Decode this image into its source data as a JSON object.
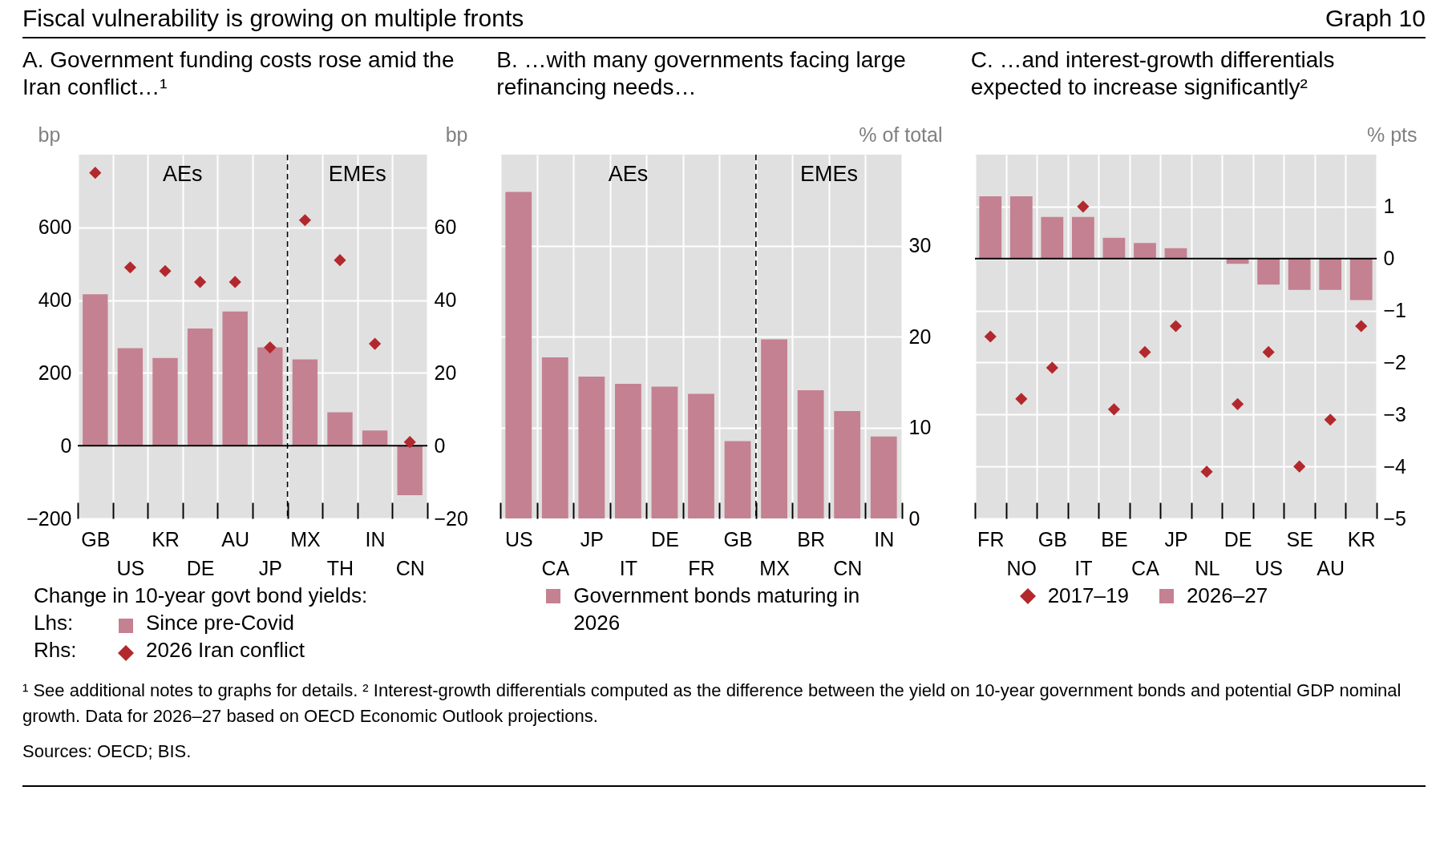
{
  "chart_data": [
    {
      "type": "other",
      "title": "Fiscal vulnerability is growing on multiple fronts",
      "annotations": [
        "Graph 10"
      ]
    },
    {
      "type": "bar",
      "title": "A. Government funding costs rose amid the Iran conflict…¹",
      "ylabel": "bp",
      "y2label": "bp",
      "legend_title": "Change in 10-year govt bond yields:",
      "categories": [
        "GB",
        "US",
        "KR",
        "DE",
        "AU",
        "JP",
        "MX",
        "TH",
        "IN",
        "CN"
      ],
      "series": [
        {
          "name": "Since pre-Covid",
          "color": "#c48191",
          "values": [
            416,
            268,
            241,
            322,
            369,
            270,
            237,
            92,
            42,
            -136
          ]
        },
        {
          "name": "2026 Iran conflict",
          "type": "scatter",
          "axis": "y2",
          "color": "#b3282d",
          "values": [
            75,
            49,
            48,
            45,
            45,
            27,
            62,
            51,
            28,
            1
          ]
        }
      ],
      "ylim": [
        -200,
        800
      ],
      "yticks": [
        -200,
        0,
        200,
        400,
        600
      ],
      "y2lim": [
        -20,
        80
      ],
      "y2ticks": [
        -20,
        0,
        20,
        40,
        60
      ],
      "marker": "diamond",
      "grid": true,
      "legend": "bottom",
      "ref_lines": [
        {
          "axis": "x",
          "value": "MX",
          "line_style": "dashed",
          "color": "#000000"
        },
        {
          "axis": "y",
          "value": 0,
          "color": "#000000"
        }
      ],
      "annotations": [
        "AEs",
        "EMEs",
        "Lhs:",
        "Rhs:"
      ]
    },
    {
      "type": "bar",
      "title": "B. …with many governments facing large refinancing needs…",
      "y2label": "% of total",
      "categories": [
        "US",
        "CA",
        "JP",
        "IT",
        "DE",
        "FR",
        "GB",
        "MX",
        "BR",
        "CN",
        "IN"
      ],
      "series": [
        {
          "name": "Government bonds maturing in 2026",
          "color": "#c48191",
          "axis": "y2",
          "values": [
            35.9,
            17.7,
            15.6,
            14.8,
            14.5,
            13.7,
            8.5,
            19.7,
            14.1,
            11.8,
            9.0
          ]
        }
      ],
      "y2lim": [
        0,
        40
      ],
      "y2ticks": [
        0,
        10,
        20,
        30
      ],
      "grid": true,
      "legend": "bottom",
      "ref_lines": [
        {
          "axis": "x",
          "value": "MX",
          "line_style": "dashed",
          "color": "#000000"
        }
      ],
      "annotations": [
        "AEs",
        "EMEs"
      ]
    },
    {
      "type": "bar",
      "title": "C. …and interest-growth differentials expected to increase significantly²",
      "y2label": "% pts",
      "categories": [
        "FR",
        "NO",
        "GB",
        "IT",
        "BE",
        "CA",
        "JP",
        "NL",
        "DE",
        "US",
        "SE",
        "AU",
        "KR"
      ],
      "series": [
        {
          "name": "2017–19",
          "type": "scatter",
          "axis": "y2",
          "color": "#b3282d",
          "values": [
            -1.5,
            -2.7,
            -2.1,
            1.0,
            -2.9,
            -1.8,
            -1.3,
            -4.1,
            -2.8,
            -1.8,
            -4.0,
            -3.1,
            -1.3
          ]
        },
        {
          "name": "2026–27",
          "color": "#c48191",
          "axis": "y2",
          "values": [
            1.2,
            1.2,
            0.8,
            0.8,
            0.4,
            0.3,
            0.2,
            null,
            -0.1,
            -0.5,
            -0.6,
            -0.6,
            -0.8
          ]
        }
      ],
      "y2lim": [
        -5,
        2
      ],
      "y2ticks": [
        -5,
        -4,
        -3,
        -2,
        -1,
        0,
        1
      ],
      "marker": "diamond",
      "grid": true,
      "legend": "bottom",
      "ref_lines": [
        {
          "axis": "y2",
          "value": 0,
          "color": "#000000"
        }
      ]
    },
    {
      "type": "other",
      "annotations": [
        "¹ See additional notes to graphs for details.  ² Interest-growth differentials computed as the difference between the yield on 10-year government bonds and potential GDP nominal growth. Data for 2026–27 based on OECD Economic Outlook projections.",
        "Sources: OECD; BIS."
      ]
    }
  ]
}
